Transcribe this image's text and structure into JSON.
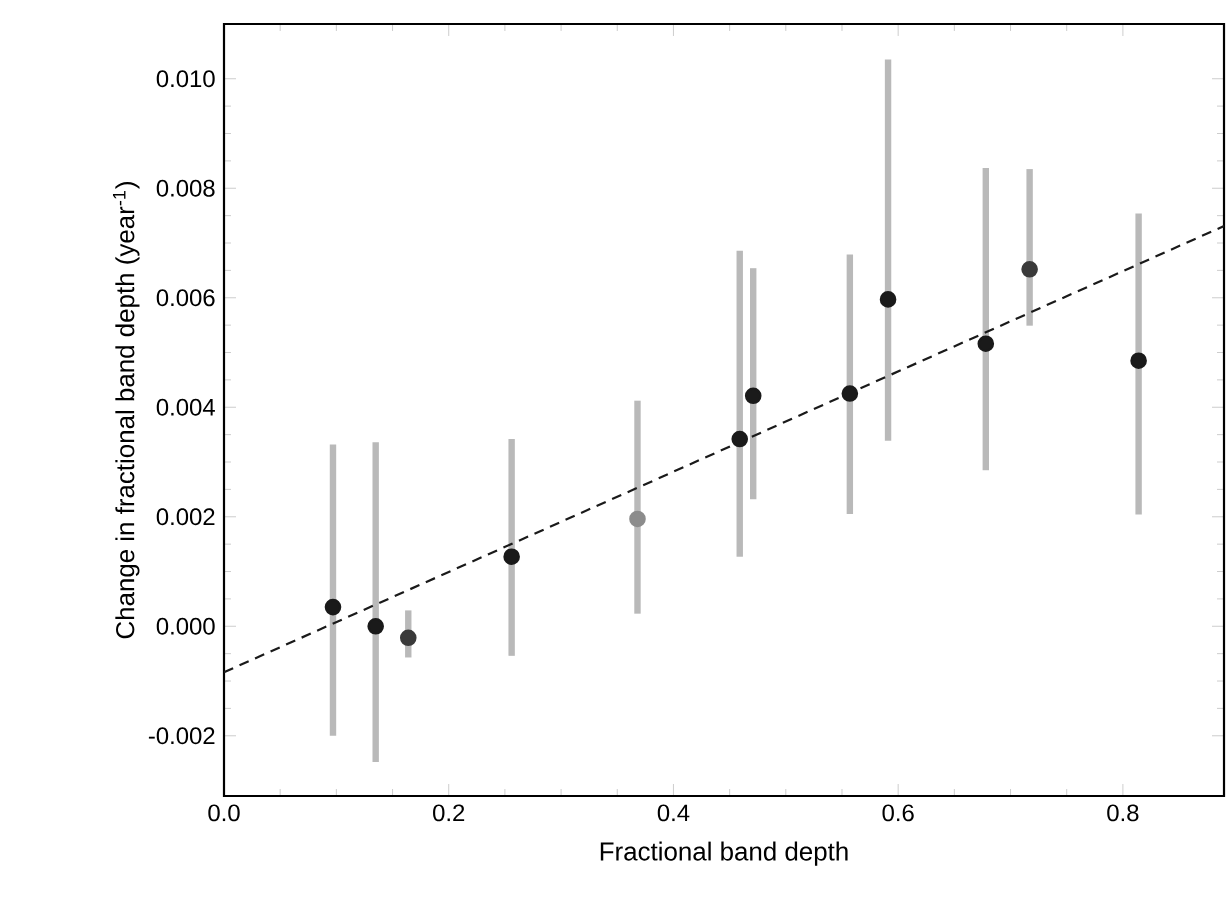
{
  "chart_data": {
    "type": "scatter",
    "xlabel": "Fractional band depth",
    "ylabel": "Change in fractional band depth (year$^{-1}$)",
    "xlim": [
      0,
      0.89
    ],
    "ylim": [
      -0.0031,
      0.011
    ],
    "xticks": [
      {
        "value": 0,
        "label": "0.0"
      },
      {
        "value": 0.2,
        "label": "0.2"
      },
      {
        "value": 0.4,
        "label": "0.4"
      },
      {
        "value": 0.6,
        "label": "0.6"
      },
      {
        "value": 0.8,
        "label": "0.8"
      }
    ],
    "yticks": [
      {
        "value": -0.002,
        "label": "-0.002"
      },
      {
        "value": 0,
        "label": "0.000"
      },
      {
        "value": 0.002,
        "label": "0.002"
      },
      {
        "value": 0.004,
        "label": "0.004"
      },
      {
        "value": 0.006,
        "label": "0.006"
      },
      {
        "value": 0.008,
        "label": "0.008"
      },
      {
        "value": 0.01,
        "label": "0.010"
      }
    ],
    "marker": "circle",
    "series": [
      {
        "color": "#1a1a1a",
        "x": [
          0.097,
          0.135,
          0.256,
          0.459,
          0.471,
          0.557,
          0.591,
          0.678,
          0.814
        ],
        "values": [
          0.00035,
          0.0,
          0.00127,
          0.00342,
          0.00421,
          0.00425,
          0.00597,
          0.00516,
          0.00485
        ],
        "errors": [
          [
            -0.002,
            0.00332
          ],
          [
            -0.00248,
            0.00336
          ],
          [
            -0.00054,
            0.00342
          ],
          [
            0.00127,
            0.00686
          ],
          [
            0.00232,
            0.00654
          ],
          [
            0.00205,
            0.00679
          ],
          [
            0.00339,
            0.01035
          ],
          [
            0.00285,
            0.00837
          ],
          [
            0.00204,
            0.00754
          ]
        ]
      },
      {
        "color": "#3a3a3a",
        "x": [
          0.164,
          0.717
        ],
        "values": [
          -0.00021,
          0.00652
        ],
        "errors": [
          [
            -0.00057,
            0.00029
          ],
          [
            0.00549,
            0.00835
          ]
        ]
      },
      {
        "color": "#8c8c8c",
        "x": [
          0.368
        ],
        "values": [
          0.00196
        ],
        "errors": [
          [
            0.00023,
            0.00412
          ]
        ]
      },
      {
        "type": "line",
        "color": "#1a1a1a",
        "line_style": "dashed",
        "marker": "none",
        "x": [
          0,
          0.89
        ],
        "values": [
          -0.00084,
          0.00731
        ]
      }
    ]
  }
}
